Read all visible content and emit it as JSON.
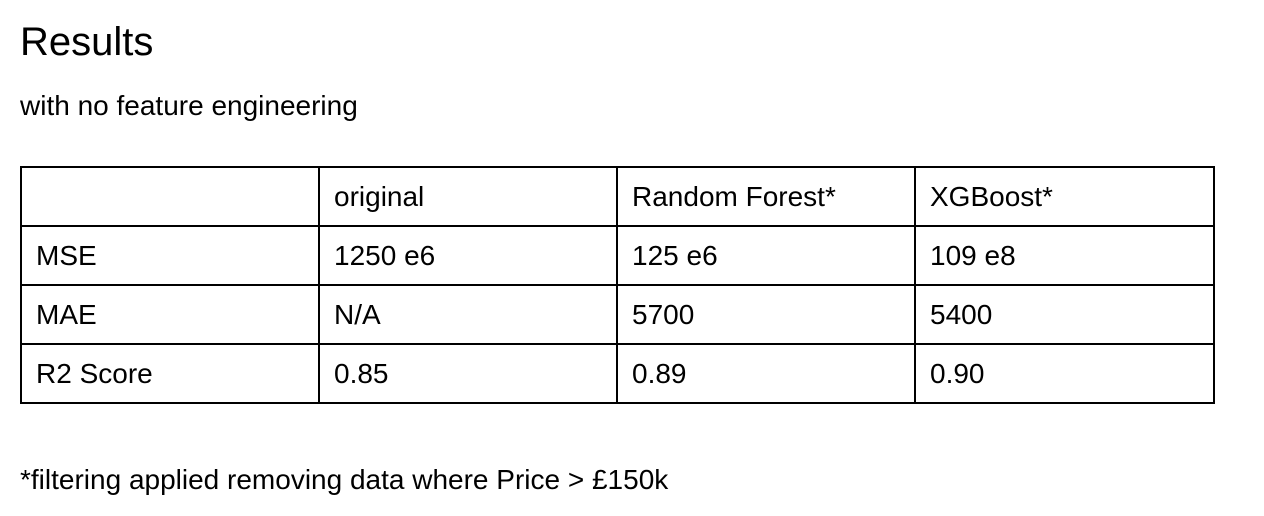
{
  "title": "Results",
  "subtitle": "with no feature engineering",
  "table": {
    "headers": [
      "",
      "original",
      "Random Forest*",
      "XGBoost*"
    ],
    "rows": [
      [
        "MSE",
        "1250 e6",
        "125 e6",
        "109 e8"
      ],
      [
        "MAE",
        "N/A",
        "5700",
        "5400"
      ],
      [
        "R2 Score",
        "0.85",
        "0.89",
        "0.90"
      ]
    ]
  },
  "footnote": "*filtering applied removing data where Price > £150k"
}
